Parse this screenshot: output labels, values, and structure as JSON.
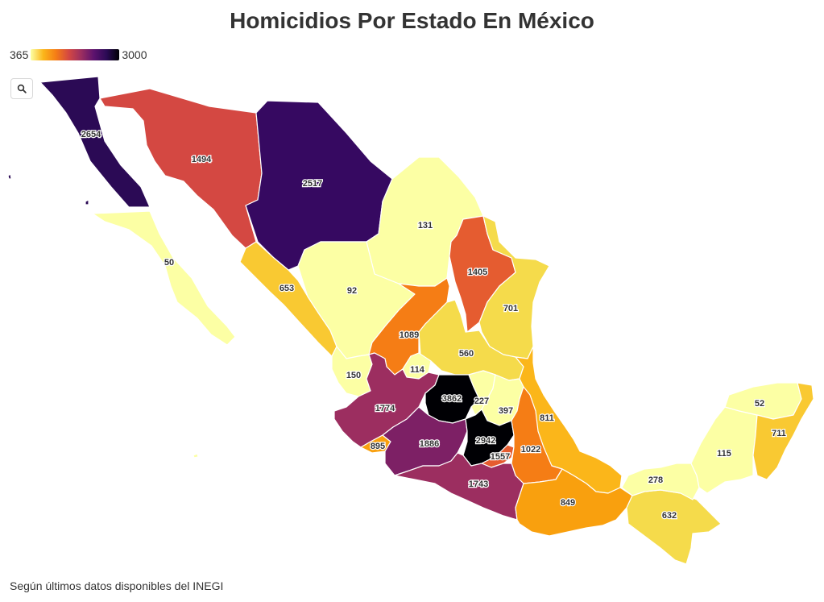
{
  "title": "Homicidios Por Estado En México",
  "legend": {
    "min_label": "365",
    "max_label": "3000"
  },
  "zoom_icon": "search-icon",
  "source": "Según últimos datos disponibles del INEGI",
  "colors": {
    "c0": "#fcffa4",
    "c1": "#f5db4b",
    "c2": "#f9c932",
    "c3": "#fbb61a",
    "c4": "#f9a00e",
    "c5": "#f57d15",
    "c6": "#e55c30",
    "c7": "#d44842",
    "c8": "#9c2e60",
    "c9": "#7d2065",
    "c10": "#360961",
    "c11": "#2b0a55",
    "c12": "#000004"
  },
  "states": [
    {
      "id": "baja-california",
      "value": "2654"
    },
    {
      "id": "sonora",
      "value": "1494"
    },
    {
      "id": "chihuahua",
      "value": "2517"
    },
    {
      "id": "coahuila",
      "value": "131"
    },
    {
      "id": "baja-california-sur",
      "value": "50"
    },
    {
      "id": "sinaloa",
      "value": "653"
    },
    {
      "id": "durango",
      "value": "92"
    },
    {
      "id": "nuevo-leon",
      "value": "1405"
    },
    {
      "id": "tamaulipas",
      "value": "701"
    },
    {
      "id": "zacatecas",
      "value": "1089"
    },
    {
      "id": "san-luis-potosi",
      "value": "560"
    },
    {
      "id": "nayarit",
      "value": "150"
    },
    {
      "id": "aguascalientes",
      "value": "114"
    },
    {
      "id": "jalisco",
      "value": "1774"
    },
    {
      "id": "guanajuato",
      "value": "3862"
    },
    {
      "id": "queretaro",
      "value": "227"
    },
    {
      "id": "hidalgo",
      "value": "397"
    },
    {
      "id": "veracruz",
      "value": "811"
    },
    {
      "id": "colima",
      "value": "895"
    },
    {
      "id": "michoacan",
      "value": "1886"
    },
    {
      "id": "estado-de-mexico",
      "value": "2942"
    },
    {
      "id": "cdmx",
      "value": "1557"
    },
    {
      "id": "puebla",
      "value": "1022"
    },
    {
      "id": "guerrero",
      "value": "1743"
    },
    {
      "id": "oaxaca",
      "value": "849"
    },
    {
      "id": "chiapas",
      "value": "632"
    },
    {
      "id": "tabasco",
      "value": "278"
    },
    {
      "id": "campeche",
      "value": "115"
    },
    {
      "id": "yucatan",
      "value": "52"
    },
    {
      "id": "quintana-roo",
      "value": "711"
    }
  ]
}
